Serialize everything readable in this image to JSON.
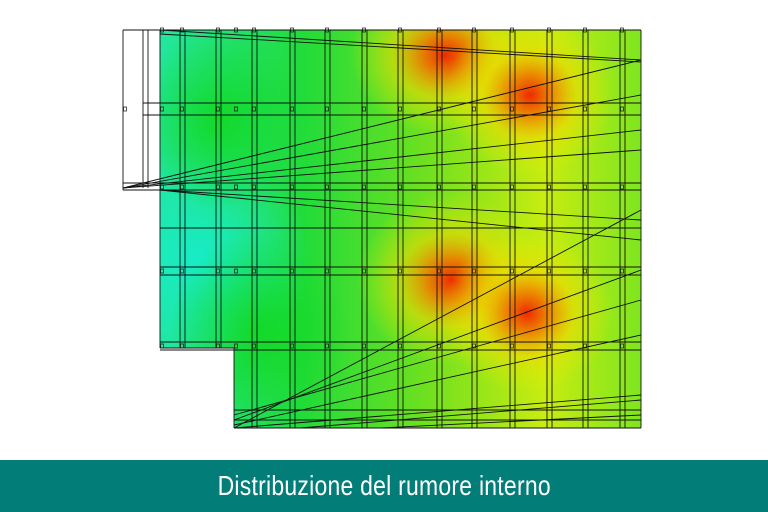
{
  "caption": "Distribuzione del rumore interno",
  "heatmap": {
    "type": "noise-distribution",
    "colors": {
      "low": "#1ee8b0",
      "mid": "#22e02a",
      "high": "#e8f000",
      "peak": "#ee2a00"
    },
    "hotspots": 4
  },
  "caption_bar_color": "#027d78"
}
